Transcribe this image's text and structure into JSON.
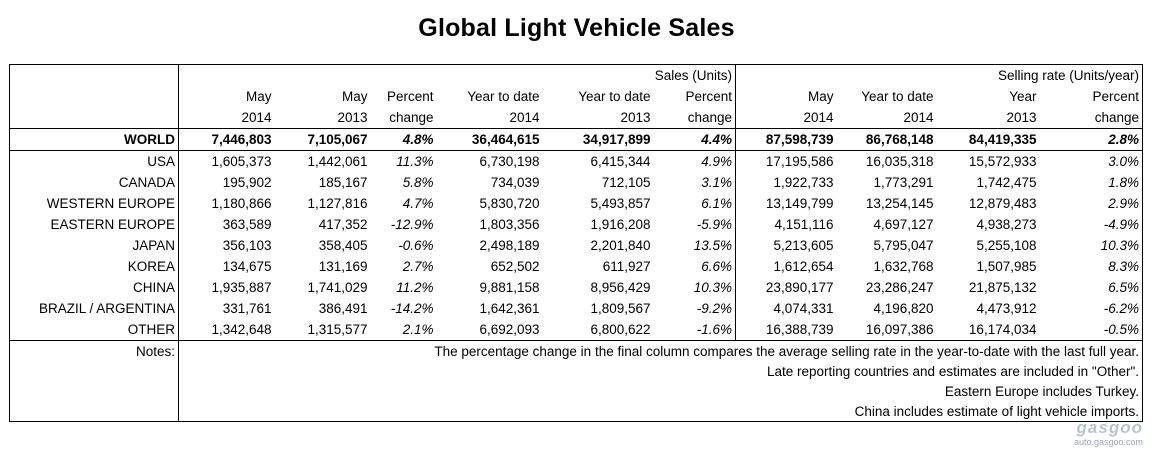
{
  "title": "Global Light Vehicle Sales",
  "header": {
    "group_sales": "Sales (Units)",
    "group_selling": "Selling rate (Units/year)",
    "row1": [
      "May",
      "May",
      "Percent",
      "Year to date",
      "Year to date",
      "Percent",
      "May",
      "Year to date",
      "Year",
      "Percent"
    ],
    "row2": [
      "2014",
      "2013",
      "change",
      "2014",
      "2013",
      "change",
      "2014",
      "2014",
      "2013",
      "change"
    ]
  },
  "rows": [
    {
      "label": "WORLD",
      "cells": [
        "7,446,803",
        "7,105,067",
        "4.8%",
        "36,464,615",
        "34,917,899",
        "4.4%",
        "87,598,739",
        "86,768,148",
        "84,419,335",
        "2.8%"
      ]
    },
    {
      "label": "USA",
      "cells": [
        "1,605,373",
        "1,442,061",
        "11.3%",
        "6,730,198",
        "6,415,344",
        "4.9%",
        "17,195,586",
        "16,035,318",
        "15,572,933",
        "3.0%"
      ]
    },
    {
      "label": "CANADA",
      "cells": [
        "195,902",
        "185,167",
        "5.8%",
        "734,039",
        "712,105",
        "3.1%",
        "1,922,733",
        "1,773,291",
        "1,742,475",
        "1.8%"
      ]
    },
    {
      "label": "WESTERN EUROPE",
      "cells": [
        "1,180,866",
        "1,127,816",
        "4.7%",
        "5,830,720",
        "5,493,857",
        "6.1%",
        "13,149,799",
        "13,254,145",
        "12,879,483",
        "2.9%"
      ]
    },
    {
      "label": "EASTERN EUROPE",
      "cells": [
        "363,589",
        "417,352",
        "-12.9%",
        "1,803,356",
        "1,916,208",
        "-5.9%",
        "4,151,116",
        "4,697,127",
        "4,938,273",
        "-4.9%"
      ]
    },
    {
      "label": "JAPAN",
      "cells": [
        "356,103",
        "358,405",
        "-0.6%",
        "2,498,189",
        "2,201,840",
        "13.5%",
        "5,213,605",
        "5,795,047",
        "5,255,108",
        "10.3%"
      ]
    },
    {
      "label": "KOREA",
      "cells": [
        "134,675",
        "131,169",
        "2.7%",
        "652,502",
        "611,927",
        "6.6%",
        "1,612,654",
        "1,632,768",
        "1,507,985",
        "8.3%"
      ]
    },
    {
      "label": "CHINA",
      "cells": [
        "1,935,887",
        "1,741,029",
        "11.2%",
        "9,881,158",
        "8,956,429",
        "10.3%",
        "23,890,177",
        "23,286,247",
        "21,875,132",
        "6.5%"
      ]
    },
    {
      "label": "BRAZIL / ARGENTINA",
      "cells": [
        "331,761",
        "386,491",
        "-14.2%",
        "1,642,361",
        "1,809,567",
        "-9.2%",
        "4,074,331",
        "4,196,820",
        "4,473,912",
        "-6.2%"
      ]
    },
    {
      "label": "OTHER",
      "cells": [
        "1,342,648",
        "1,315,577",
        "2.1%",
        "6,692,093",
        "6,800,622",
        "-1.6%",
        "16,388,739",
        "16,097,386",
        "16,174,034",
        "-0.5%"
      ]
    }
  ],
  "notes": {
    "label": "Notes:",
    "items": [
      "The percentage change in the final column compares the average selling rate in the year-to-date with the last full year.",
      "Late reporting countries and estimates are included in \"Other\".",
      "Eastern Europe includes Turkey.",
      "China includes estimate of light vehicle imports."
    ]
  },
  "watermark": {
    "logo": "gasgoo",
    "url": "auto.gasgoo.com"
  }
}
